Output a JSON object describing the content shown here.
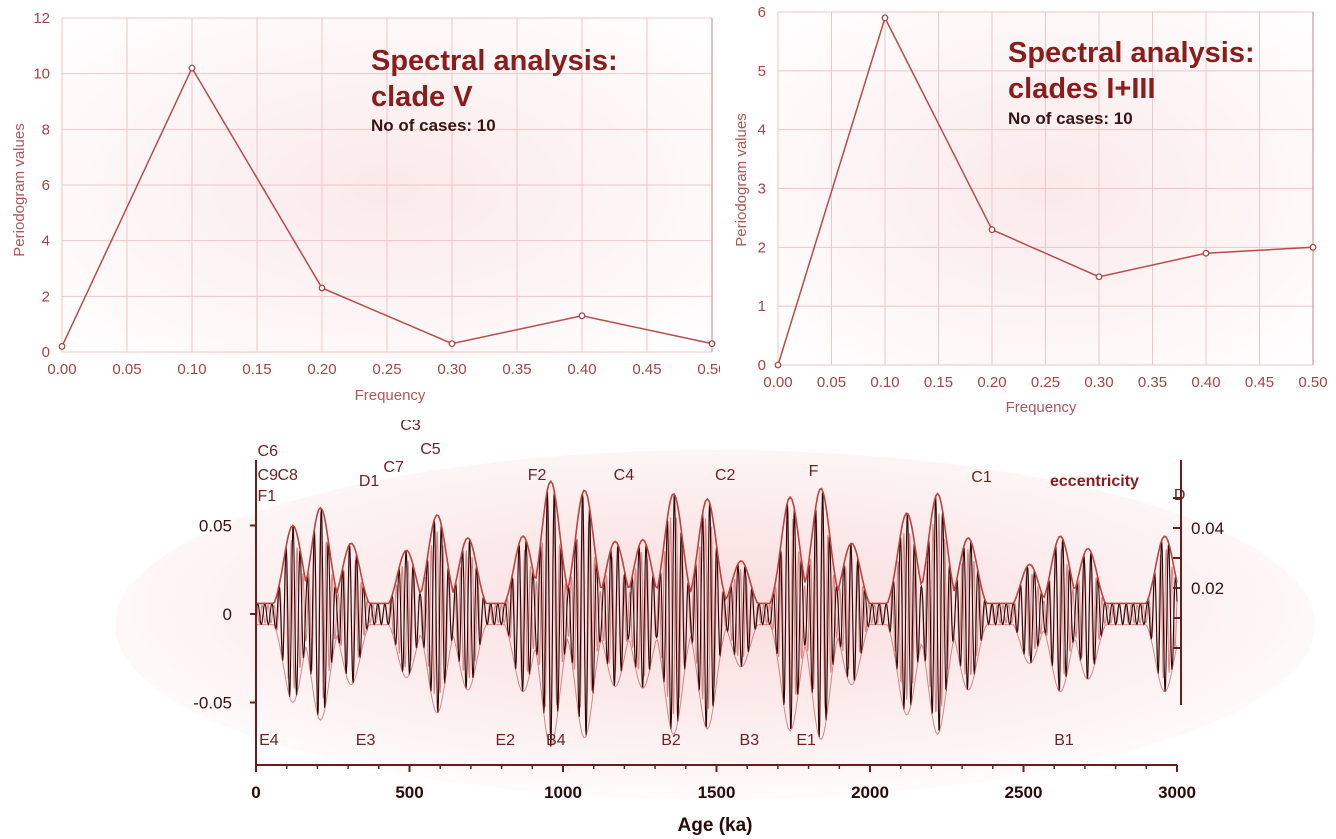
{
  "chart_data": [
    {
      "type": "line",
      "title": "Spectral analysis:",
      "title_line2": "clade V",
      "subtitle": "No of cases: 10",
      "xlabel": "Frequency",
      "ylabel": "Periodogram values",
      "xlim": [
        0,
        0.5
      ],
      "ylim": [
        0,
        12
      ],
      "grid": true,
      "x_ticks": [
        "0.00",
        "0.05",
        "0.10",
        "0.15",
        "0.20",
        "0.25",
        "0.30",
        "0.35",
        "0.40",
        "0.45",
        "0.50"
      ],
      "y_ticks": [
        "0",
        "2",
        "4",
        "6",
        "8",
        "10",
        "12"
      ],
      "x": [
        0.0,
        0.1,
        0.2,
        0.3,
        0.4,
        0.5
      ],
      "y": [
        0.2,
        10.2,
        2.3,
        0.3,
        1.3,
        0.3
      ]
    },
    {
      "type": "line",
      "title": "Spectral analysis:",
      "title_line2": "clades I+III",
      "subtitle": "No of cases: 10",
      "xlabel": "Frequency",
      "ylabel": "Periodogram values",
      "xlim": [
        0,
        0.5
      ],
      "ylim": [
        0,
        6
      ],
      "grid": true,
      "x_ticks": [
        "0.00",
        "0.05",
        "0.10",
        "0.15",
        "0.20",
        "0.25",
        "0.30",
        "0.35",
        "0.40",
        "0.45",
        "0.50"
      ],
      "y_ticks": [
        "0",
        "1",
        "2",
        "3",
        "4",
        "5",
        "6"
      ],
      "x": [
        0.0,
        0.1,
        0.2,
        0.3,
        0.4,
        0.5
      ],
      "y": [
        0.0,
        5.9,
        2.3,
        1.5,
        1.9,
        2.0
      ]
    },
    {
      "type": "line",
      "xlabel": "Age (ka)",
      "xlim": [
        0,
        3000
      ],
      "ylim_left": [
        -0.07,
        0.07
      ],
      "ylim_right": [
        -0.03,
        0.055
      ],
      "x_ticks": [
        "0",
        "500",
        "1000",
        "1500",
        "2000",
        "2500",
        "3000"
      ],
      "y_ticks_left": [
        "0.05",
        "0",
        "-0.05"
      ],
      "y_ticks_right": [
        "0.04",
        "0.02"
      ],
      "series_label": "eccentricity",
      "peak_labels_top": [
        "C6",
        "C9",
        "F1",
        "C8",
        "D1",
        "C3",
        "C7",
        "C5",
        "F2",
        "C4",
        "C2",
        "F",
        "C1",
        "D"
      ],
      "peak_labels_bottom": [
        "E4",
        "E3",
        "E2",
        "B4",
        "B2",
        "B3",
        "E1",
        "B1"
      ],
      "peaks": [
        {
          "age": 120,
          "amp": 0.05
        },
        {
          "age": 210,
          "amp": 0.06
        },
        {
          "age": 310,
          "amp": 0.04
        },
        {
          "age": 490,
          "amp": 0.036
        },
        {
          "age": 590,
          "amp": 0.056
        },
        {
          "age": 690,
          "amp": 0.043
        },
        {
          "age": 870,
          "amp": 0.044
        },
        {
          "age": 960,
          "amp": 0.075
        },
        {
          "age": 1070,
          "amp": 0.07
        },
        {
          "age": 1170,
          "amp": 0.041
        },
        {
          "age": 1260,
          "amp": 0.042
        },
        {
          "age": 1360,
          "amp": 0.068
        },
        {
          "age": 1470,
          "amp": 0.065
        },
        {
          "age": 1580,
          "amp": 0.03
        },
        {
          "age": 1740,
          "amp": 0.066
        },
        {
          "age": 1840,
          "amp": 0.071
        },
        {
          "age": 1940,
          "amp": 0.04
        },
        {
          "age": 2120,
          "amp": 0.057
        },
        {
          "age": 2220,
          "amp": 0.068
        },
        {
          "age": 2320,
          "amp": 0.043
        },
        {
          "age": 2520,
          "amp": 0.028
        },
        {
          "age": 2620,
          "amp": 0.044
        },
        {
          "age": 2710,
          "amp": 0.037
        },
        {
          "age": 2960,
          "amp": 0.044
        }
      ]
    }
  ],
  "colors": {
    "line": "#b84b4b",
    "wave_dark": "#2a0606",
    "wave_light": "#d87a7a",
    "envelope": "#c04040",
    "grid": "#ecc7c7"
  }
}
